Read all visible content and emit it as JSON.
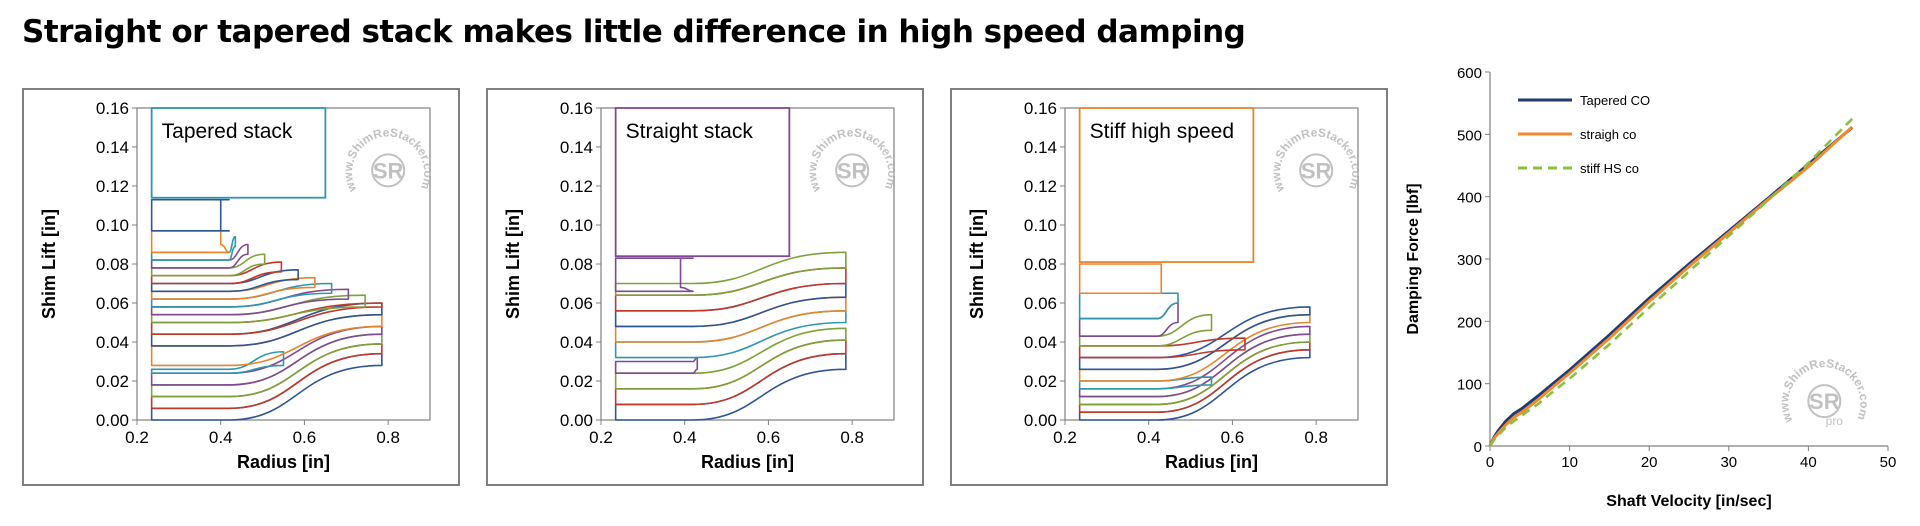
{
  "title": "Straight or tapered stack makes little difference in high speed damping",
  "colors": {
    "border": "#7f7f7f",
    "axis": "#808080",
    "stack_palette": [
      "#2e5596",
      "#c0392b",
      "#7ea13b",
      "#7f4a91",
      "#2f96b0",
      "#e8852c"
    ],
    "tapered": "#1f3b73",
    "straight": "#f0892f",
    "stiff": "#8bbf3c",
    "watermark": "#b7b7b7"
  },
  "watermark": {
    "text": "www.ShimReStacker.com",
    "logo": "SR",
    "pro": "pro"
  },
  "chart_data": [
    {
      "type": "line",
      "id": "tapered",
      "title": "Tapered stack",
      "xlabel": "Radius [in]",
      "ylabel": "Shim Lift [in]",
      "xlim": [
        0.2,
        0.9
      ],
      "ylim": [
        0,
        0.16
      ],
      "xticks": [
        0.2,
        0.4,
        0.6,
        0.8
      ],
      "yticks": [
        0.0,
        0.02,
        0.04,
        0.06,
        0.08,
        0.1,
        0.12,
        0.14,
        0.16
      ],
      "xtick_labels": [
        "0.2",
        "0.4",
        "0.6",
        "0.8"
      ],
      "ytick_labels": [
        "0.00",
        "0.02",
        "0.04",
        "0.06",
        "0.08",
        "0.10",
        "0.12",
        "0.14",
        "0.16"
      ],
      "shims": [
        {
          "r": 0.785,
          "bottom": [
            0,
            0,
            0.028
          ],
          "top": [
            0.006,
            0.006,
            0.034
          ]
        },
        {
          "r": 0.785,
          "bottom": [
            0.006,
            0.006,
            0.034
          ],
          "top": [
            0.012,
            0.012,
            0.039
          ]
        },
        {
          "r": 0.785,
          "bottom": [
            0.012,
            0.012,
            0.039
          ],
          "top": [
            0.018,
            0.018,
            0.044
          ]
        },
        {
          "r": 0.785,
          "bottom": [
            0.018,
            0.018,
            0.044
          ],
          "top": [
            0.024,
            0.024,
            0.048
          ]
        },
        {
          "r": 0.55,
          "bottom": [
            0.024,
            0.024,
            0.028
          ],
          "top": [
            0.026,
            0.026,
            0.035
          ]
        },
        {
          "r": 0.785,
          "bottom": [
            0.028,
            0.028,
            0.048
          ],
          "top": [
            0.038,
            0.038,
            0.054
          ]
        },
        {
          "r": 0.785,
          "bottom": [
            0.038,
            0.038,
            0.054
          ],
          "top": [
            0.044,
            0.044,
            0.06
          ]
        },
        {
          "r": 0.785,
          "bottom": [
            0.044,
            0.044,
            0.058
          ],
          "top": [
            0.05,
            0.05,
            0.06
          ]
        },
        {
          "r": 0.745,
          "bottom": [
            0.05,
            0.05,
            0.058
          ],
          "top": [
            0.054,
            0.054,
            0.064
          ]
        },
        {
          "r": 0.705,
          "bottom": [
            0.054,
            0.054,
            0.062
          ],
          "top": [
            0.058,
            0.058,
            0.067
          ]
        },
        {
          "r": 0.665,
          "bottom": [
            0.058,
            0.058,
            0.065
          ],
          "top": [
            0.062,
            0.062,
            0.07
          ]
        },
        {
          "r": 0.625,
          "bottom": [
            0.062,
            0.062,
            0.068
          ],
          "top": [
            0.066,
            0.066,
            0.073
          ]
        },
        {
          "r": 0.585,
          "bottom": [
            0.066,
            0.066,
            0.072
          ],
          "top": [
            0.07,
            0.07,
            0.077
          ]
        },
        {
          "r": 0.545,
          "bottom": [
            0.07,
            0.07,
            0.076
          ],
          "top": [
            0.074,
            0.074,
            0.081
          ]
        },
        {
          "r": 0.505,
          "bottom": [
            0.074,
            0.074,
            0.08
          ],
          "top": [
            0.078,
            0.078,
            0.085
          ]
        },
        {
          "r": 0.465,
          "bottom": [
            0.078,
            0.078,
            0.085
          ],
          "top": [
            0.082,
            0.082,
            0.09
          ]
        },
        {
          "r": 0.435,
          "bottom": [
            0.082,
            0.082,
            0.089
          ],
          "top": [
            0.086,
            0.086,
            0.094
          ]
        },
        {
          "r": 0.4,
          "bottom": [
            0.086,
            0.086,
            0.09
          ],
          "top": [
            0.097,
            0.097,
            0.097
          ]
        },
        {
          "r": 0.4,
          "bottom": [
            0.097,
            0.097,
            0.097
          ],
          "top": [
            0.113,
            0.113,
            0.113
          ]
        }
      ],
      "cap": {
        "r": 0.65,
        "bottom": 0.114,
        "top": 0.16,
        "color": "#2f96b0"
      }
    },
    {
      "type": "line",
      "id": "straight",
      "title": "Straight stack",
      "xlabel": "Radius [in]",
      "ylabel": "Shim Lift [in]",
      "xlim": [
        0.2,
        0.9
      ],
      "ylim": [
        0,
        0.16
      ],
      "xticks": [
        0.2,
        0.4,
        0.6,
        0.8
      ],
      "yticks": [
        0.0,
        0.02,
        0.04,
        0.06,
        0.08,
        0.1,
        0.12,
        0.14,
        0.16
      ],
      "xtick_labels": [
        "0.2",
        "0.4",
        "0.6",
        "0.8"
      ],
      "ytick_labels": [
        "0.00",
        "0.02",
        "0.04",
        "0.06",
        "0.08",
        "0.10",
        "0.12",
        "0.14",
        "0.16"
      ],
      "shims": [
        {
          "r": 0.785,
          "bottom": [
            0,
            0,
            0.026
          ],
          "top": [
            0.008,
            0.008,
            0.034
          ]
        },
        {
          "r": 0.785,
          "bottom": [
            0.008,
            0.008,
            0.034
          ],
          "top": [
            0.016,
            0.016,
            0.041
          ]
        },
        {
          "r": 0.785,
          "bottom": [
            0.016,
            0.016,
            0.041
          ],
          "top": [
            0.024,
            0.024,
            0.047
          ]
        },
        {
          "r": 0.43,
          "bottom": [
            0.024,
            0.024,
            0.026
          ],
          "top": [
            0.03,
            0.03,
            0.032
          ]
        },
        {
          "r": 0.785,
          "bottom": [
            0.032,
            0.032,
            0.05
          ],
          "top": [
            0.04,
            0.04,
            0.056
          ]
        },
        {
          "r": 0.785,
          "bottom": [
            0.04,
            0.04,
            0.056
          ],
          "top": [
            0.048,
            0.048,
            0.063
          ]
        },
        {
          "r": 0.785,
          "bottom": [
            0.048,
            0.048,
            0.063
          ],
          "top": [
            0.056,
            0.056,
            0.07
          ]
        },
        {
          "r": 0.785,
          "bottom": [
            0.056,
            0.056,
            0.07
          ],
          "top": [
            0.064,
            0.064,
            0.078
          ]
        },
        {
          "r": 0.785,
          "bottom": [
            0.064,
            0.064,
            0.078
          ],
          "top": [
            0.07,
            0.07,
            0.086
          ]
        },
        {
          "r": 0.39,
          "bottom": [
            0.066,
            0.066,
            0.068
          ],
          "top": [
            0.083,
            0.083,
            0.083
          ]
        }
      ],
      "cap": {
        "r": 0.65,
        "bottom": 0.084,
        "top": 0.16,
        "color": "#7f4a91"
      }
    },
    {
      "type": "line",
      "id": "stiff",
      "title": "Stiff high speed",
      "xlabel": "Radius [in]",
      "ylabel": "Shim Lift [in]",
      "xlim": [
        0.2,
        0.9
      ],
      "ylim": [
        0,
        0.16
      ],
      "xticks": [
        0.2,
        0.4,
        0.6,
        0.8
      ],
      "yticks": [
        0.0,
        0.02,
        0.04,
        0.06,
        0.08,
        0.1,
        0.12,
        0.14,
        0.16
      ],
      "xtick_labels": [
        "0.2",
        "0.4",
        "0.6",
        "0.8"
      ],
      "ytick_labels": [
        "0.00",
        "0.02",
        "0.04",
        "0.06",
        "0.08",
        "0.10",
        "0.12",
        "0.14",
        "0.16"
      ],
      "shims": [
        {
          "r": 0.785,
          "bottom": [
            0,
            0,
            0.032
          ],
          "top": [
            0.004,
            0.004,
            0.036
          ]
        },
        {
          "r": 0.785,
          "bottom": [
            0.004,
            0.004,
            0.036
          ],
          "top": [
            0.008,
            0.008,
            0.04
          ]
        },
        {
          "r": 0.785,
          "bottom": [
            0.008,
            0.008,
            0.04
          ],
          "top": [
            0.012,
            0.012,
            0.044
          ]
        },
        {
          "r": 0.785,
          "bottom": [
            0.012,
            0.012,
            0.044
          ],
          "top": [
            0.016,
            0.016,
            0.048
          ]
        },
        {
          "r": 0.55,
          "bottom": [
            0.016,
            0.016,
            0.018
          ],
          "top": [
            0.02,
            0.02,
            0.022
          ]
        },
        {
          "r": 0.785,
          "bottom": [
            0.02,
            0.02,
            0.05
          ],
          "top": [
            0.026,
            0.026,
            0.054
          ]
        },
        {
          "r": 0.785,
          "bottom": [
            0.026,
            0.026,
            0.054
          ],
          "top": [
            0.032,
            0.032,
            0.058
          ]
        },
        {
          "r": 0.63,
          "bottom": [
            0.032,
            0.032,
            0.036
          ],
          "top": [
            0.038,
            0.038,
            0.042
          ]
        },
        {
          "r": 0.55,
          "bottom": [
            0.038,
            0.038,
            0.046
          ],
          "top": [
            0.043,
            0.043,
            0.054
          ]
        },
        {
          "r": 0.47,
          "bottom": [
            0.043,
            0.043,
            0.05
          ],
          "top": [
            0.052,
            0.052,
            0.06
          ]
        },
        {
          "r": 0.47,
          "bottom": [
            0.052,
            0.052,
            0.06
          ],
          "top": [
            0.065,
            0.065,
            0.065
          ]
        },
        {
          "r": 0.43,
          "bottom": [
            0.065,
            0.065,
            0.065
          ],
          "top": [
            0.08,
            0.08,
            0.08
          ]
        }
      ],
      "cap": {
        "r": 0.65,
        "bottom": 0.081,
        "top": 0.16,
        "color": "#e8852c"
      }
    },
    {
      "type": "line",
      "id": "damping",
      "title": "",
      "xlabel": "Shaft Velocity [in/sec]",
      "ylabel": "Damping Force [lbf]",
      "xlim": [
        0,
        50
      ],
      "ylim": [
        0,
        600
      ],
      "xticks": [
        0,
        10,
        20,
        30,
        40,
        50
      ],
      "yticks": [
        0,
        100,
        200,
        300,
        400,
        500,
        600
      ],
      "xtick_labels": [
        "0",
        "10",
        "20",
        "30",
        "40",
        "50"
      ],
      "ytick_labels": [
        "0",
        "100",
        "200",
        "300",
        "400",
        "500",
        "600"
      ],
      "legend": "top-left",
      "series": [
        {
          "name": "Tapered CO",
          "color": "#1f3b73",
          "dash": false,
          "x": [
            0,
            0.5,
            1,
            2,
            3,
            4,
            6,
            8,
            10,
            15,
            20,
            25,
            30,
            35,
            40,
            45.5
          ],
          "y": [
            0,
            14,
            24,
            40,
            52,
            60,
            80,
            101,
            122,
            178,
            237,
            292,
            345,
            398,
            452,
            511
          ]
        },
        {
          "name": "straigh co",
          "color": "#f0892f",
          "dash": false,
          "x": [
            0,
            0.5,
            1,
            2,
            3,
            4,
            6,
            8,
            10,
            15,
            20,
            25,
            30,
            35,
            40,
            45.5
          ],
          "y": [
            0,
            12,
            20,
            34,
            46,
            54,
            74,
            96,
            117,
            173,
            232,
            288,
            342,
            396,
            448,
            512
          ]
        },
        {
          "name": "stiff HS co",
          "color": "#8bbf3c",
          "dash": true,
          "x": [
            0,
            0.5,
            1,
            2,
            3,
            4,
            6,
            8,
            10,
            15,
            20,
            25,
            30,
            35,
            40,
            45.5
          ],
          "y": [
            0,
            10,
            17,
            30,
            40,
            49,
            67,
            88,
            108,
            163,
            222,
            280,
            337,
            395,
            454,
            525
          ]
        }
      ]
    }
  ]
}
